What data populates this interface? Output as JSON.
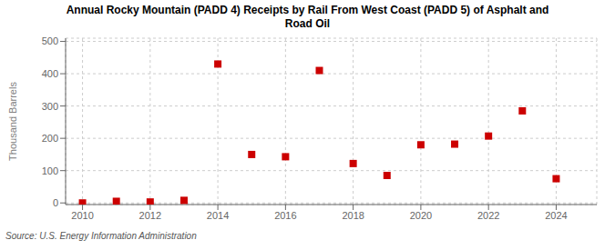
{
  "chart_data": {
    "type": "scatter",
    "title": "Annual Rocky Mountain (PADD 4) Receipts by Rail From West Coast (PADD 5) of Asphalt and\nRoad Oil",
    "ylabel": "Thousand Barrels",
    "annotations": [
      "Source: U.S. Energy Information Administration"
    ],
    "x": [
      2010,
      2011,
      2012,
      2013,
      2014,
      2015,
      2016,
      2017,
      2018,
      2019,
      2020,
      2021,
      2022,
      2023,
      2024
    ],
    "values": [
      0,
      5,
      3,
      8,
      430,
      150,
      143,
      410,
      122,
      85,
      180,
      182,
      207,
      285,
      75
    ],
    "color": "#cc0000",
    "marker": "square",
    "xlim": [
      2009.5,
      2025.2
    ],
    "ylim": [
      -5,
      510
    ],
    "xticks": [
      2010,
      2012,
      2014,
      2016,
      2018,
      2020,
      2022,
      2024
    ],
    "yticks": [
      0,
      100,
      200,
      300,
      400,
      500
    ],
    "grid": true
  }
}
